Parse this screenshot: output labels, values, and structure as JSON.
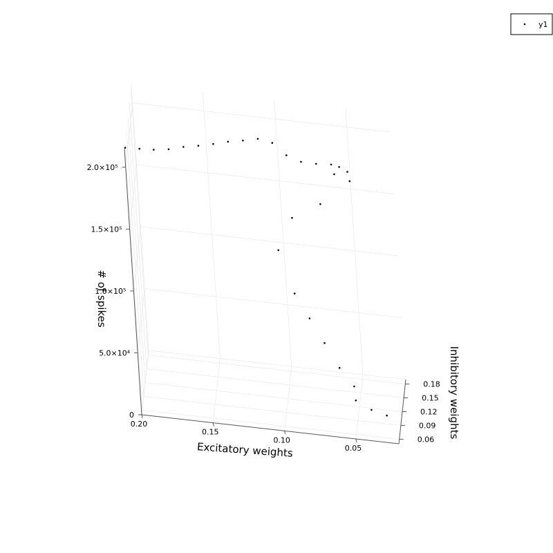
{
  "chart_data": {
    "type": "scatter",
    "projection": "3d",
    "xlabel": "Excitatory weights",
    "ylabel": "Inhibitory weights",
    "zlabel": "# of spikes",
    "xlim": [
      0.02,
      0.2
    ],
    "ylim": [
      0.05,
      0.19
    ],
    "zlim": [
      0,
      215000
    ],
    "x_ticks": [
      "0.20",
      "0.15",
      "0.10",
      "0.05"
    ],
    "x_tick_values": [
      0.2,
      0.15,
      0.1,
      0.05
    ],
    "y_ticks": [
      "0.06",
      "0.09",
      "0.12",
      "0.15",
      "0.18"
    ],
    "y_tick_values": [
      0.06,
      0.09,
      0.12,
      0.15,
      0.18
    ],
    "z_ticks": [
      "0",
      "5.0×10⁴",
      "1.0×10⁵",
      "1.5×10⁵",
      "2.0×10⁵"
    ],
    "z_tick_values": [
      0,
      50000,
      100000,
      150000,
      200000
    ],
    "grid": true,
    "legend_position": "top-right",
    "series": [
      {
        "name": "y1",
        "marker": "point",
        "color": "#000000",
        "points": [
          [
            0.2,
            0.06,
            212000
          ],
          [
            0.19,
            0.06,
            212500
          ],
          [
            0.18,
            0.06,
            213000
          ],
          [
            0.17,
            0.07,
            211000
          ],
          [
            0.16,
            0.08,
            210500
          ],
          [
            0.15,
            0.09,
            209000
          ],
          [
            0.14,
            0.1,
            208000
          ],
          [
            0.13,
            0.11,
            207500
          ],
          [
            0.12,
            0.12,
            206000
          ],
          [
            0.11,
            0.13,
            205000
          ],
          [
            0.1,
            0.13,
            203000
          ],
          [
            0.09,
            0.12,
            198000
          ],
          [
            0.08,
            0.12,
            194000
          ],
          [
            0.07,
            0.13,
            190000
          ],
          [
            0.06,
            0.14,
            187000
          ],
          [
            0.055,
            0.15,
            182000
          ],
          [
            0.05,
            0.16,
            175000
          ],
          [
            0.06,
            0.17,
            168000
          ],
          [
            0.05,
            0.18,
            160000
          ],
          [
            0.07,
            0.15,
            150000
          ],
          [
            0.09,
            0.14,
            140000
          ],
          [
            0.1,
            0.12,
            120000
          ],
          [
            0.09,
            0.11,
            90000
          ],
          [
            0.08,
            0.1,
            75000
          ],
          [
            0.07,
            0.09,
            60000
          ],
          [
            0.06,
            0.08,
            45000
          ],
          [
            0.05,
            0.07,
            35000
          ],
          [
            0.05,
            0.08,
            20000
          ],
          [
            0.04,
            0.09,
            10000
          ],
          [
            0.03,
            0.1,
            3000
          ]
        ]
      }
    ]
  }
}
